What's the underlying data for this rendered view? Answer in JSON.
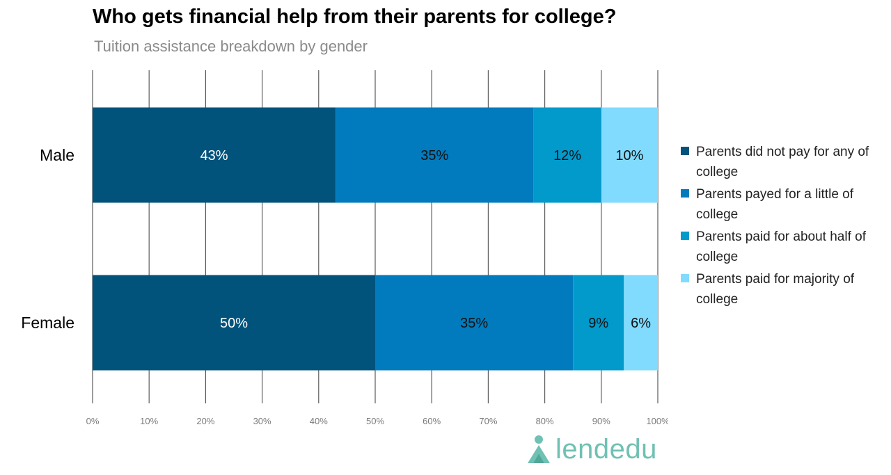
{
  "chart_data": {
    "type": "bar",
    "orientation": "horizontal",
    "stacked": true,
    "title": "Who gets financial help from their parents for college?",
    "subtitle": "Tuition assistance breakdown by gender",
    "categories": [
      "Male",
      "Female"
    ],
    "series": [
      {
        "name": "Parents did not pay for any of college",
        "values": [
          43,
          50
        ],
        "labels": [
          "43%",
          "50%"
        ],
        "color": "#02537b",
        "label_color": "#ffffff"
      },
      {
        "name": "Parents payed for a little of college",
        "values": [
          35,
          35
        ],
        "labels": [
          "35%",
          "35%"
        ],
        "color": "#017bbd",
        "label_color": "#111111"
      },
      {
        "name": "Parents paid for about half of college",
        "values": [
          12,
          9
        ],
        "labels": [
          "12%",
          "9%"
        ],
        "color": "#0299cb",
        "label_color": "#111111"
      },
      {
        "name": "Parents paid for majority of college",
        "values": [
          10,
          6
        ],
        "labels": [
          "10%",
          "6%"
        ],
        "color": "#81dbfe",
        "label_color": "#111111"
      }
    ],
    "xlim": [
      0,
      100
    ],
    "xticks": [
      "0%",
      "10%",
      "20%",
      "30%",
      "40%",
      "50%",
      "60%",
      "70%",
      "80%",
      "90%",
      "100%"
    ],
    "grid": true,
    "legend": "right"
  },
  "logo": {
    "text": "lendedu",
    "color": "#6fc1b3"
  }
}
